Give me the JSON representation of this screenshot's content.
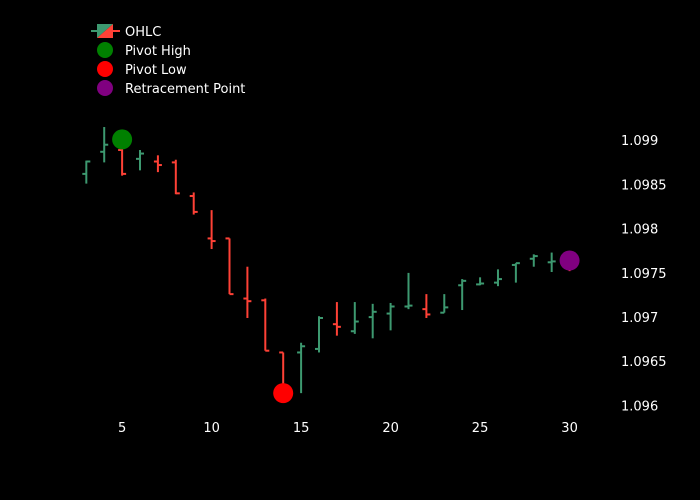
{
  "chart_data": {
    "type": "ohlc",
    "title": "",
    "xlabel": "",
    "ylabel": "",
    "x_ticks": [
      5,
      10,
      15,
      20,
      25,
      30
    ],
    "y_ticks": [
      1.096,
      1.0965,
      1.097,
      1.0975,
      1.098,
      1.0985,
      1.099
    ],
    "y_tick_labels": [
      "1.096",
      "1.0965",
      "1.097",
      "1.0975",
      "1.098",
      "1.0985",
      "1.099"
    ],
    "xlim": [
      2.2,
      31.7
    ],
    "ylim": [
      1.09588,
      1.09933
    ],
    "colors": {
      "background": "#000000",
      "increasing": "#3d9970",
      "decreasing": "#ff4136",
      "pivot_high": "#008000",
      "pivot_low": "#ff0000",
      "retracement": "#800080"
    },
    "legend": {
      "position": "top-left",
      "entries": [
        {
          "key": "ohlc",
          "label": "OHLC"
        },
        {
          "key": "pivot_high",
          "label": "Pivot High"
        },
        {
          "key": "pivot_low",
          "label": "Pivot Low"
        },
        {
          "key": "retracement",
          "label": "Retracement Point"
        }
      ]
    },
    "ohlc": [
      {
        "x": 3,
        "o": 1.09863,
        "h": 1.09878,
        "l": 1.09852,
        "c": 1.09877
      },
      {
        "x": 4,
        "o": 1.09888,
        "h": 1.09916,
        "l": 1.09876,
        "c": 1.09896
      },
      {
        "x": 5,
        "o": 1.0989,
        "h": 1.09897,
        "l": 1.09861,
        "c": 1.09863
      },
      {
        "x": 6,
        "o": 1.0988,
        "h": 1.0989,
        "l": 1.09867,
        "c": 1.09886
      },
      {
        "x": 7,
        "o": 1.09877,
        "h": 1.09884,
        "l": 1.09865,
        "c": 1.09873
      },
      {
        "x": 8,
        "o": 1.09876,
        "h": 1.09879,
        "l": 1.0984,
        "c": 1.09841
      },
      {
        "x": 9,
        "o": 1.09838,
        "h": 1.09842,
        "l": 1.09817,
        "c": 1.0982
      },
      {
        "x": 10,
        "o": 1.0979,
        "h": 1.09822,
        "l": 1.09778,
        "c": 1.09787
      },
      {
        "x": 11,
        "o": 1.0979,
        "h": 1.0979,
        "l": 1.09727,
        "c": 1.09727
      },
      {
        "x": 12,
        "o": 1.09722,
        "h": 1.09758,
        "l": 1.097,
        "c": 1.09719
      },
      {
        "x": 13,
        "o": 1.0972,
        "h": 1.09722,
        "l": 1.09663,
        "c": 1.09663
      },
      {
        "x": 14,
        "o": 1.09661,
        "h": 1.09661,
        "l": 1.0962,
        "c": 1.0962
      },
      {
        "x": 15,
        "o": 1.09661,
        "h": 1.09672,
        "l": 1.09615,
        "c": 1.09668
      },
      {
        "x": 16,
        "o": 1.09665,
        "h": 1.09702,
        "l": 1.09661,
        "c": 1.097
      },
      {
        "x": 17,
        "o": 1.09693,
        "h": 1.09718,
        "l": 1.0968,
        "c": 1.0969
      },
      {
        "x": 18,
        "o": 1.09685,
        "h": 1.09718,
        "l": 1.09682,
        "c": 1.09696
      },
      {
        "x": 19,
        "o": 1.09701,
        "h": 1.09716,
        "l": 1.09677,
        "c": 1.09707
      },
      {
        "x": 20,
        "o": 1.09705,
        "h": 1.09717,
        "l": 1.09686,
        "c": 1.09713
      },
      {
        "x": 21,
        "o": 1.09713,
        "h": 1.09751,
        "l": 1.0971,
        "c": 1.09714
      },
      {
        "x": 22,
        "o": 1.0971,
        "h": 1.09727,
        "l": 1.097,
        "c": 1.09704
      },
      {
        "x": 23,
        "o": 1.09706,
        "h": 1.09727,
        "l": 1.09706,
        "c": 1.09712
      },
      {
        "x": 24,
        "o": 1.09737,
        "h": 1.09744,
        "l": 1.09709,
        "c": 1.09742
      },
      {
        "x": 25,
        "o": 1.09738,
        "h": 1.09746,
        "l": 1.09737,
        "c": 1.09739
      },
      {
        "x": 26,
        "o": 1.0974,
        "h": 1.09755,
        "l": 1.09736,
        "c": 1.09744
      },
      {
        "x": 27,
        "o": 1.0976,
        "h": 1.09762,
        "l": 1.0974,
        "c": 1.09762
      },
      {
        "x": 28,
        "o": 1.09767,
        "h": 1.09772,
        "l": 1.09758,
        "c": 1.0977
      },
      {
        "x": 29,
        "o": 1.09763,
        "h": 1.09774,
        "l": 1.09752,
        "c": 1.09764
      },
      {
        "x": 30,
        "o": 1.09763,
        "h": 1.09771,
        "l": 1.09753,
        "c": 1.0976
      }
    ],
    "pivot_high": {
      "x": 5,
      "y": 1.09902
    },
    "pivot_low": {
      "x": 14,
      "y": 1.09615
    },
    "retracement": {
      "x": 30,
      "y": 1.09765
    }
  }
}
